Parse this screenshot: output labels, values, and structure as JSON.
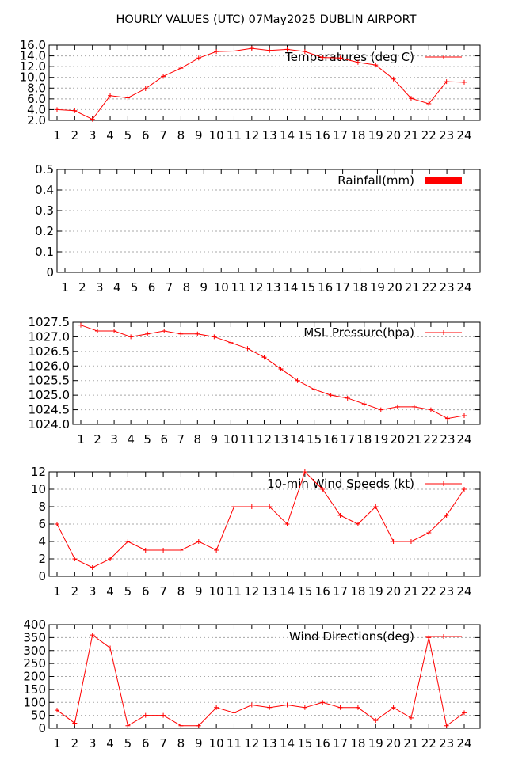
{
  "title": "HOURLY VALUES (UTC) 07May2025  DUBLIN AIRPORT",
  "series_color": "#ff0000",
  "chart_data": [
    {
      "type": "line",
      "legend": "Temperatures (deg C)",
      "x": [
        1,
        2,
        3,
        4,
        5,
        6,
        7,
        8,
        9,
        10,
        11,
        12,
        13,
        14,
        15,
        16,
        17,
        18,
        19,
        20,
        21,
        22,
        23,
        24
      ],
      "values": [
        4.0,
        3.8,
        2.2,
        6.6,
        6.2,
        7.9,
        10.2,
        11.7,
        13.6,
        14.8,
        14.9,
        15.4,
        15.0,
        15.2,
        14.8,
        13.7,
        13.6,
        12.8,
        12.3,
        9.7,
        6.1,
        5.1,
        9.2,
        9.1
      ],
      "ylim": [
        2.0,
        16.0
      ],
      "yticks": [
        "2.0",
        "4.0",
        "6.0",
        "8.0",
        "10.0",
        "12.0",
        "14.0",
        "16.0"
      ],
      "xticks": [
        "1",
        "2",
        "3",
        "4",
        "5",
        "6",
        "7",
        "8",
        "9",
        "10",
        "11",
        "12",
        "13",
        "14",
        "15",
        "16",
        "17",
        "18",
        "19",
        "20",
        "21",
        "22",
        "23",
        "24"
      ],
      "grid": true,
      "legend_position": "top-right"
    },
    {
      "type": "bar",
      "legend": "Rainfall(mm)",
      "x": [
        1,
        2,
        3,
        4,
        5,
        6,
        7,
        8,
        9,
        10,
        11,
        12,
        13,
        14,
        15,
        16,
        17,
        18,
        19,
        20,
        21,
        22,
        23,
        24
      ],
      "values": [
        0,
        0,
        0,
        0,
        0,
        0,
        0,
        0,
        0,
        0,
        0,
        0,
        0,
        0,
        0,
        0,
        0,
        0,
        0,
        0,
        0,
        0,
        0,
        0
      ],
      "ylim": [
        0,
        0.5
      ],
      "yticks": [
        "0",
        "0.1",
        "0.2",
        "0.3",
        "0.4",
        "0.5"
      ],
      "xticks": [
        "1",
        "2",
        "3",
        "4",
        "5",
        "6",
        "7",
        "8",
        "9",
        "10",
        "11",
        "12",
        "13",
        "14",
        "15",
        "16",
        "17",
        "18",
        "19",
        "20",
        "21",
        "22",
        "23",
        "24"
      ],
      "grid": true,
      "legend_position": "top-right"
    },
    {
      "type": "line",
      "legend": "MSL Pressure(hpa)",
      "x": [
        1,
        2,
        3,
        4,
        5,
        6,
        7,
        8,
        9,
        10,
        11,
        12,
        13,
        14,
        15,
        16,
        17,
        18,
        19,
        20,
        21,
        22,
        23,
        24
      ],
      "values": [
        1027.4,
        1027.2,
        1027.2,
        1027.0,
        1027.1,
        1027.2,
        1027.1,
        1027.1,
        1027.0,
        1026.8,
        1026.6,
        1026.3,
        1025.9,
        1025.5,
        1025.2,
        1025.0,
        1024.9,
        1024.7,
        1024.5,
        1024.6,
        1024.6,
        1024.5,
        1024.2,
        1024.3
      ],
      "ylim": [
        1024.0,
        1027.5
      ],
      "yticks": [
        "1024.0",
        "1024.5",
        "1025.0",
        "1025.5",
        "1026.0",
        "1026.5",
        "1027.0",
        "1027.5"
      ],
      "xticks": [
        "1",
        "2",
        "3",
        "4",
        "5",
        "6",
        "7",
        "8",
        "9",
        "10",
        "11",
        "12",
        "13",
        "14",
        "15",
        "16",
        "17",
        "18",
        "19",
        "20",
        "21",
        "22",
        "23",
        "24"
      ],
      "grid": true,
      "legend_position": "top-right"
    },
    {
      "type": "line",
      "legend": "10-min Wind Speeds (kt)",
      "x": [
        1,
        2,
        3,
        4,
        5,
        6,
        7,
        8,
        9,
        10,
        11,
        12,
        13,
        14,
        15,
        16,
        17,
        18,
        19,
        20,
        21,
        22,
        23,
        24
      ],
      "values": [
        6,
        2,
        1,
        2,
        4,
        3,
        3,
        3,
        4,
        3,
        8,
        8,
        8,
        6,
        12,
        10,
        7,
        6,
        8,
        4,
        4,
        5,
        7,
        10
      ],
      "ylim": [
        0,
        12
      ],
      "yticks": [
        "0",
        "2",
        "4",
        "6",
        "8",
        "10",
        "12"
      ],
      "xticks": [
        "1",
        "2",
        "3",
        "4",
        "5",
        "6",
        "7",
        "8",
        "9",
        "10",
        "11",
        "12",
        "13",
        "14",
        "15",
        "16",
        "17",
        "18",
        "19",
        "20",
        "21",
        "22",
        "23",
        "24"
      ],
      "grid": true,
      "legend_position": "top-right"
    },
    {
      "type": "line",
      "legend": "Wind Directions(deg)",
      "x": [
        1,
        2,
        3,
        4,
        5,
        6,
        7,
        8,
        9,
        10,
        11,
        12,
        13,
        14,
        15,
        16,
        17,
        18,
        19,
        20,
        21,
        22,
        23,
        24
      ],
      "values": [
        70,
        20,
        360,
        310,
        10,
        50,
        50,
        10,
        10,
        80,
        60,
        90,
        80,
        90,
        80,
        100,
        80,
        80,
        30,
        80,
        40,
        350,
        10,
        60
      ],
      "ylim": [
        0,
        400
      ],
      "yticks": [
        "0",
        "50",
        "100",
        "150",
        "200",
        "250",
        "300",
        "350",
        "400"
      ],
      "xticks": [
        "1",
        "2",
        "3",
        "4",
        "5",
        "6",
        "7",
        "8",
        "9",
        "10",
        "11",
        "12",
        "13",
        "14",
        "15",
        "16",
        "17",
        "18",
        "19",
        "20",
        "21",
        "22",
        "23",
        "24"
      ],
      "grid": true,
      "legend_position": "top-right"
    }
  ]
}
